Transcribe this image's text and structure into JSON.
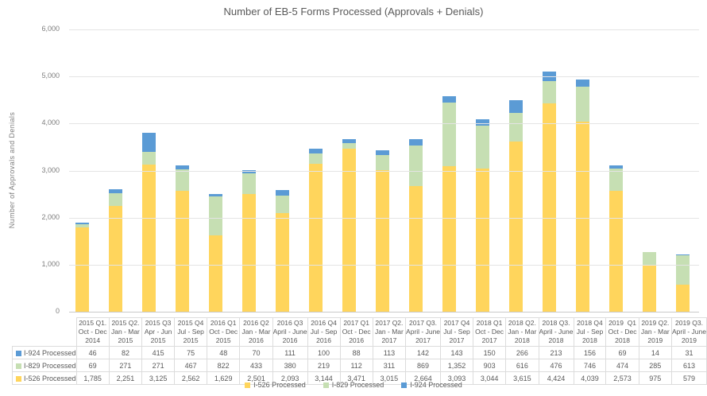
{
  "chart_data": {
    "type": "bar",
    "stacked": true,
    "title": "Number of EB-5 Forms Processed (Approvals + Denials)",
    "ylabel": "Number  of Approvals and Denials",
    "xlabel": "",
    "ylim": [
      0,
      6000
    ],
    "grid": true,
    "legend_position": "bottom",
    "yticks": [
      "6,000",
      "5,000",
      "4,000",
      "3,000",
      "2,000",
      "1,000",
      "0"
    ],
    "categories": [
      {
        "quarter": "2015 Q1.",
        "months": "Oct - Dec",
        "year": "2014"
      },
      {
        "quarter": "2015 Q2.",
        "months": "Jan - Mar",
        "year": "2015"
      },
      {
        "quarter": "2015 Q3",
        "months": "Apr - Jun",
        "year": "2015"
      },
      {
        "quarter": "2015 Q4",
        "months": "Jul - Sep",
        "year": "2015"
      },
      {
        "quarter": "2016 Q1",
        "months": "Oct - Dec",
        "year": "2015"
      },
      {
        "quarter": "2016 Q2",
        "months": "Jan - Mar",
        "year": "2016"
      },
      {
        "quarter": "2016 Q3",
        "months": "April - June",
        "year": "2016"
      },
      {
        "quarter": "2016 Q4",
        "months": "Jul - Sep",
        "year": "2016"
      },
      {
        "quarter": "2017 Q1",
        "months": "Oct - Dec",
        "year": "2016"
      },
      {
        "quarter": "2017 Q2.",
        "months": "Jan - Mar",
        "year": "2017"
      },
      {
        "quarter": "2017 Q3.",
        "months": "April - June",
        "year": "2017"
      },
      {
        "quarter": "2017 Q4",
        "months": "Jul - Sep",
        "year": "2017"
      },
      {
        "quarter": "2018 Q1",
        "months": "Oct - Dec",
        "year": "2017"
      },
      {
        "quarter": "2018 Q2.",
        "months": "Jan - Mar",
        "year": "2018"
      },
      {
        "quarter": "2018 Q3.",
        "months": "April - June",
        "year": "2018"
      },
      {
        "quarter": "2018 Q4",
        "months": "Jul - Sep",
        "year": "2018"
      },
      {
        "quarter": "2019  Q1",
        "months": "Oct - Dec",
        "year": "2018"
      },
      {
        "quarter": "2019 Q2.",
        "months": "Jan - Mar",
        "year": "2019"
      },
      {
        "quarter": "2019 Q3.",
        "months": "April - June",
        "year": "2019"
      }
    ],
    "series": [
      {
        "name": "I-526 Processed",
        "color": "#FFD55C",
        "values": [
          1785,
          2251,
          3125,
          2562,
          1629,
          2501,
          2093,
          3144,
          3471,
          3015,
          2664,
          3093,
          3044,
          3615,
          4424,
          4039,
          2573,
          975,
          579
        ]
      },
      {
        "name": "I-829 Processed",
        "color": "#C6DFB3",
        "values": [
          69,
          271,
          271,
          467,
          822,
          433,
          380,
          219,
          112,
          311,
          869,
          1352,
          903,
          616,
          476,
          746,
          474,
          285,
          613
        ]
      },
      {
        "name": "I-924 Processed",
        "color": "#5B9BD5",
        "values": [
          46,
          82,
          415,
          75,
          48,
          70,
          111,
          100,
          88,
          113,
          142,
          143,
          150,
          266,
          213,
          156,
          69,
          14,
          31
        ]
      }
    ],
    "table_row_order": [
      2,
      1,
      0
    ],
    "legend_order": [
      0,
      1,
      2
    ]
  }
}
